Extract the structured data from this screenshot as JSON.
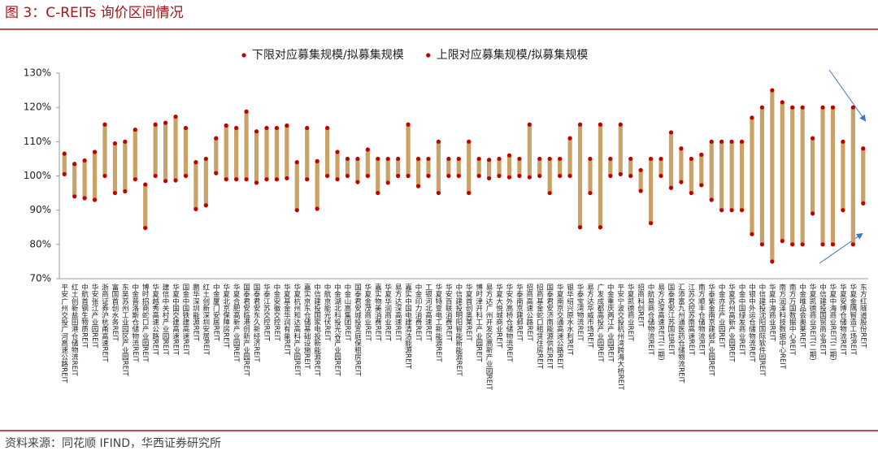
{
  "chart_data": {
    "type": "range",
    "title": "图 3：C-REITs 询价区间情况",
    "source": "资料来源：同花顺 IFIND，华西证券研究所",
    "ylim": [
      70,
      130
    ],
    "yticks": [
      {
        "value": 70,
        "label": "70%"
      },
      {
        "value": 80,
        "label": "80%"
      },
      {
        "value": 90,
        "label": "90%"
      },
      {
        "value": 100,
        "label": "100%"
      },
      {
        "value": 110,
        "label": "110%"
      },
      {
        "value": 120,
        "label": "120%"
      },
      {
        "value": 130,
        "label": "130%"
      }
    ],
    "bar_color": "#c9a267",
    "categories": [
      "平安广州交投广河高速公路REIT",
      "红土创新盐田港仓储物流REIT",
      "中航首钢生物质REIT",
      "华安张江产业园REIT",
      "浙商证券沪杭甬高速REIT",
      "富国首创水务REIT",
      "东吴苏州工业园区产业园REIT",
      "中金普洛斯仓储物流REIT",
      "博时招商蛇口产业园REIT",
      "华夏越秀高速公路REIT",
      "建信中关村产业园REIT",
      "华夏中国交建高速REIT",
      "国金中国铁建高速REIT",
      "鹏华深圳能源REIT",
      "红土创新深圳安居REIT",
      "中金厦门安居REIT",
      "华夏北京保障房REIT",
      "华夏合肥高新产业园REIT",
      "国泰君安临港创新产业园REIT",
      "国泰君安东久新经济REIT",
      "华泰江苏交控REIT",
      "中金安徽交控REIT",
      "华夏基金华润有巢REIT",
      "华夏杭州和达高科产业园REIT",
      "嘉实京东仓储基础设施REIT",
      "中信建投国家电投新能源REIT",
      "中航京能光伏REIT",
      "中金湖北科投光谷产业园REIT",
      "中金山高集团REIT",
      "国泰君安城投宽庭保租房REIT",
      "华夏金茂商业REIT",
      "嘉实物美消费REIT",
      "华夏华润商业REIT",
      "易方达深高速REIT",
      "嘉实中国电建清洁能源REIT",
      "中金印力消费REIT",
      "工银河北高速REIT",
      "华夏特变电工新能源REIT",
      "华安百联消费REIT",
      "中信建投明阳智能新能源REIT",
      "华夏首创奥莱REIT",
      "博时津开科工产业园REIT",
      "易方达广州开发区高新产业园REIT",
      "华夏大悦城商业REIT",
      "华安外高桥仓储物流REIT",
      "华泰南京建邺REIT",
      "招商高速公路REIT",
      "招商基金蛇口租赁住房REIT",
      "国泰君安济南能源供热REIT",
      "华夏南京交通高速公路REIT",
      "银华绍兴原水水利REIT",
      "华泰宝湾物流REIT",
      "易方达华威市场REIT",
      "广发成都高投产业园REIT",
      "中金重庆两江产业园REIT",
      "平安宁波交投杭州湾跨海大桥REIT",
      "华夏凯德商业REIT",
      "招商科创REIT",
      "中航易商仓储物流REIT",
      "易方达深高速REIT(二期)",
      "国泰君安江苏国信REIT",
      "汇添富九州通医药仓储物流REIT",
      "江苏交控苏南高速REIT",
      "南方顺丰仓储物流REIT",
      "华泰紫金南京建邺产业园REIT",
      "中金亦庄产业园REIT",
      "华夏苏州高新产业园REIT",
      "中金中国绿发商业REIT",
      "中银中外运仓储物流REIT",
      "中信建投沈阳国际软件园REIT",
      "华夏中海商业REIT",
      "南方润泽科技数据中心REIT",
      "南方万国数据中心REIT",
      "中金唯品会奥莱REIT",
      "华夏凯德商业REIT(二期)",
      "中信建投国贸商业REIT",
      "华夏中海商业REIT(二期)",
      "华夏安博仓储物流REIT",
      "华夏金隅智造工场REIT",
      "东方红隧道股份REIT"
    ],
    "series": [
      {
        "name": "下限对应募集规模/拟募集规模",
        "color": "#c00000",
        "values": [
          100.5,
          94,
          93.5,
          93,
          100,
          95,
          95.5,
          99,
          84.8,
          100,
          98.5,
          98.7,
          100,
          90.3,
          91.4,
          100.8,
          99,
          99,
          99,
          98,
          99,
          99,
          99.3,
          90,
          99,
          90.4,
          100,
          99,
          100,
          98.2,
          100,
          95,
          98,
          100,
          100,
          97,
          100,
          95,
          100,
          100,
          95,
          100,
          99.3,
          100,
          99.6,
          100,
          99.6,
          100,
          95,
          100,
          100,
          85,
          95,
          85,
          100,
          100.5,
          100,
          95.6,
          86.2,
          100,
          96.5,
          98.2,
          95,
          97.3,
          93,
          90,
          90,
          90,
          83,
          80,
          75,
          81,
          80,
          80,
          89,
          80,
          80,
          90,
          80,
          92
        ]
      },
      {
        "name": "上限对应募集规模/拟募集规模",
        "color": "#c00000",
        "values": [
          106.5,
          103.5,
          104.5,
          107,
          115,
          109.5,
          110,
          113.5,
          97.5,
          115,
          115.5,
          117.3,
          114,
          104,
          105,
          111,
          114.7,
          114,
          118.8,
          113,
          114,
          114,
          114.7,
          104,
          114,
          104.3,
          114,
          107,
          105,
          105,
          107.7,
          105,
          105,
          105,
          115,
          105,
          105,
          110,
          105,
          105,
          110,
          105,
          104.7,
          105,
          106,
          105,
          115,
          105,
          105,
          105,
          111,
          115,
          105,
          115,
          105,
          115,
          105,
          101.7,
          105,
          105,
          112.7,
          108,
          105,
          106.2,
          110,
          110,
          110,
          110,
          117,
          120,
          125,
          121.5,
          120,
          120,
          111,
          120,
          120,
          110,
          120,
          108
        ]
      }
    ]
  }
}
